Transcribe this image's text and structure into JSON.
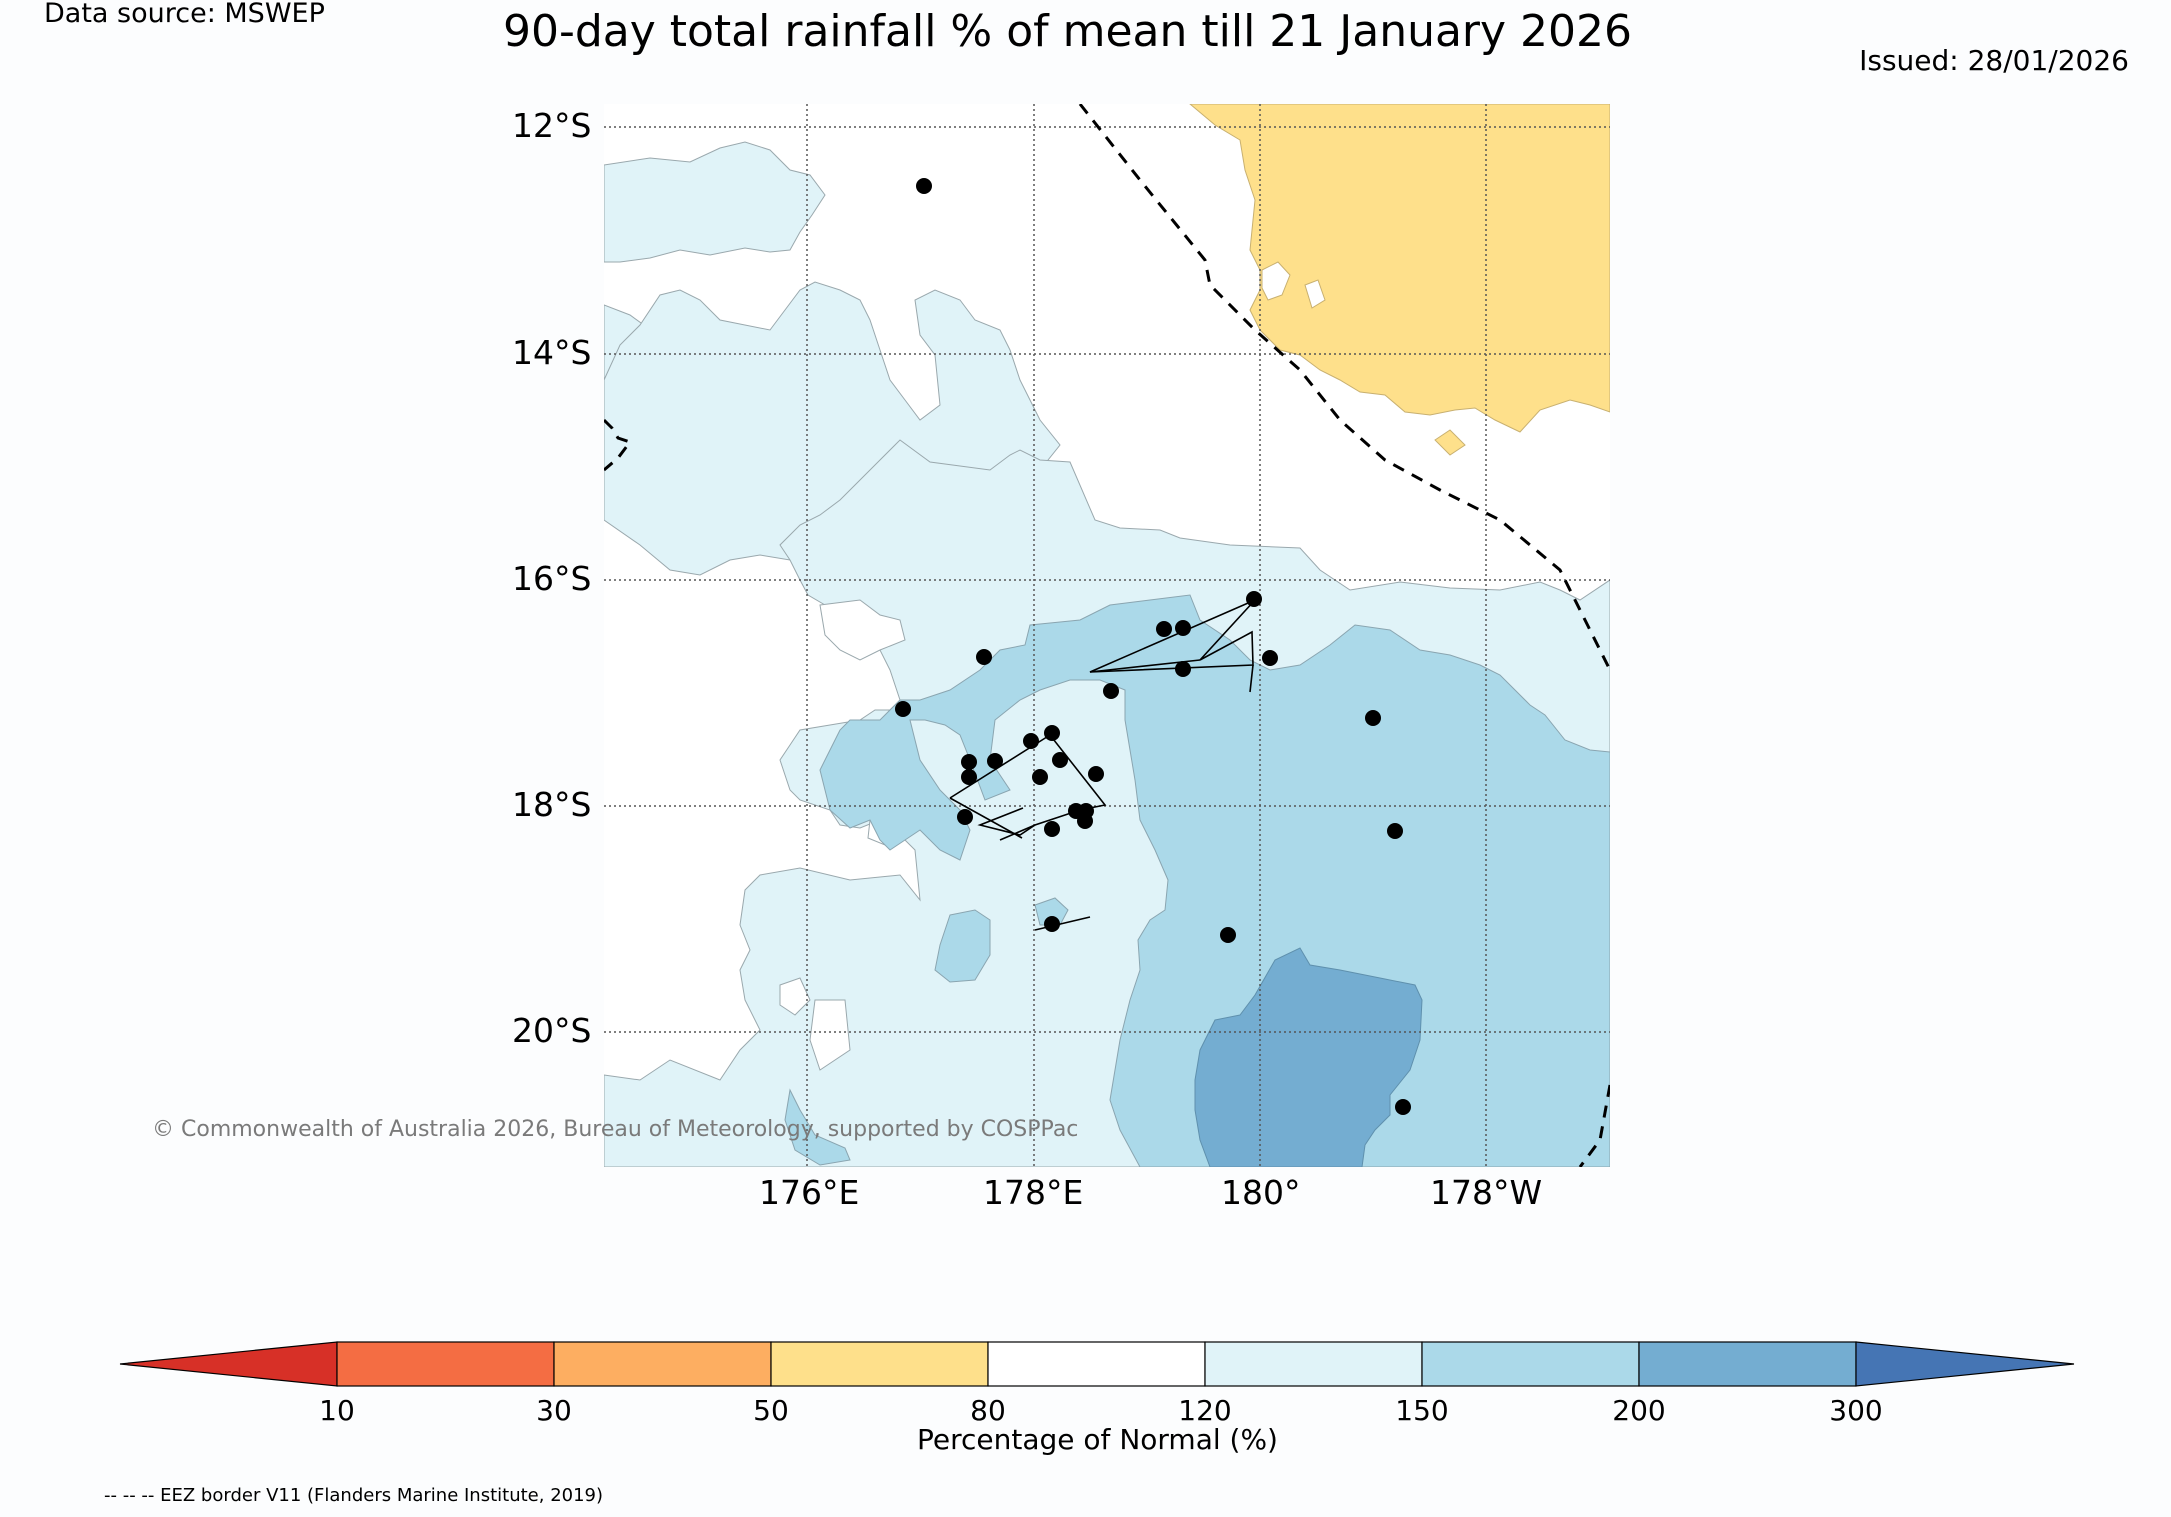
{
  "header": {
    "data_source": "Data source: MSWEP",
    "title": "90-day total rainfall % of mean till 21 January 2026",
    "issued": "Issued: 28/01/2026"
  },
  "map": {
    "lat_labels": [
      "12°S",
      "14°S",
      "16°S",
      "18°S",
      "20°S"
    ],
    "lon_labels": [
      "176°E",
      "178°E",
      "180°",
      "178°W"
    ],
    "copyright": "© Commonwealth of Australia 2026, Bureau of Meteorology, supported by COSPPac",
    "legend_colors": {
      "below_80": "#fee08b",
      "80_120": "#ffffff",
      "120_150": "#e0f3f8",
      "150_200": "#abd9e9",
      "200_300": "#74add1"
    }
  },
  "colorbar": {
    "label": "Percentage of Normal (%)",
    "ticks": [
      "10",
      "30",
      "50",
      "80",
      "120",
      "150",
      "200",
      "300"
    ],
    "colors": [
      "#d73027",
      "#f46d43",
      "#fdae61",
      "#fee08b",
      "#ffffff",
      "#e0f3f8",
      "#abd9e9",
      "#74add1",
      "#4575b4"
    ]
  },
  "footer": {
    "eez_note": "-- -- -- EEZ border V11 (Flanders Marine Institute, 2019)"
  }
}
